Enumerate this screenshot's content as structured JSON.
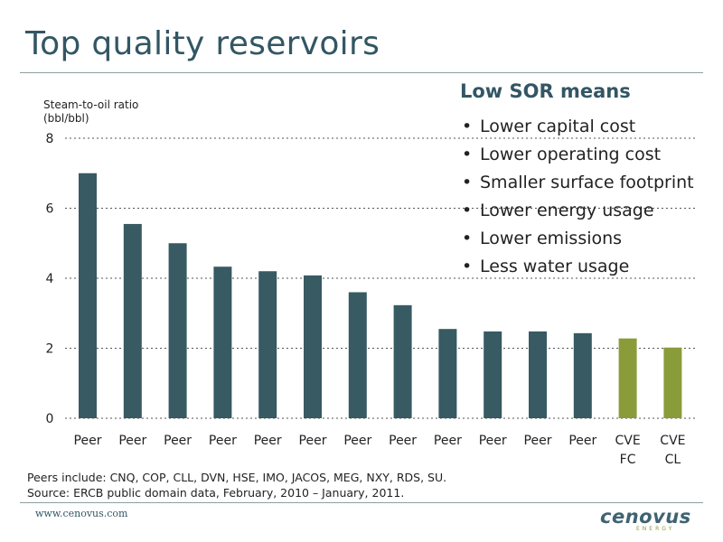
{
  "slide": {
    "title": "Top quality reservoirs",
    "website": "www.cenovus.com",
    "logo_text": "cenovus",
    "logo_subtext": "ENERGY"
  },
  "panel": {
    "title": "Low SOR means",
    "bullets": [
      "Lower capital cost",
      "Lower operating cost",
      "Smaller surface footprint",
      "Lower energy usage",
      "Lower emissions",
      "Less water usage"
    ]
  },
  "footnotes": {
    "peers": "Peers include: CNQ, COP, CLL, DVN, HSE, IMO, JACOS, MEG, NXY, RDS, SU.",
    "source": "Source: ERCB public domain data, February, 2010 – January, 2011."
  },
  "colors": {
    "peer": "#375a63",
    "cenovus": "#8a9c3a",
    "title": "#335664",
    "grid": "#555555"
  },
  "chart_data": {
    "type": "bar",
    "ylabel": "Steam-to-oil ratio\n(bbl/bbl)",
    "xlabel": "",
    "ylim": [
      0,
      8
    ],
    "yticks": [
      0,
      2,
      4,
      6,
      8
    ],
    "grid": true,
    "categories": [
      "Peer",
      "Peer",
      "Peer",
      "Peer",
      "Peer",
      "Peer",
      "Peer",
      "Peer",
      "Peer",
      "Peer",
      "Peer",
      "Peer",
      "CVE\nFC",
      "CVE\nCL"
    ],
    "values": [
      7.0,
      5.55,
      5.0,
      4.33,
      4.2,
      4.08,
      3.6,
      3.23,
      2.55,
      2.48,
      2.48,
      2.43,
      2.28,
      2.02
    ],
    "bar_colors": [
      "peer",
      "peer",
      "peer",
      "peer",
      "peer",
      "peer",
      "peer",
      "peer",
      "peer",
      "peer",
      "peer",
      "peer",
      "cenovus",
      "cenovus"
    ]
  }
}
